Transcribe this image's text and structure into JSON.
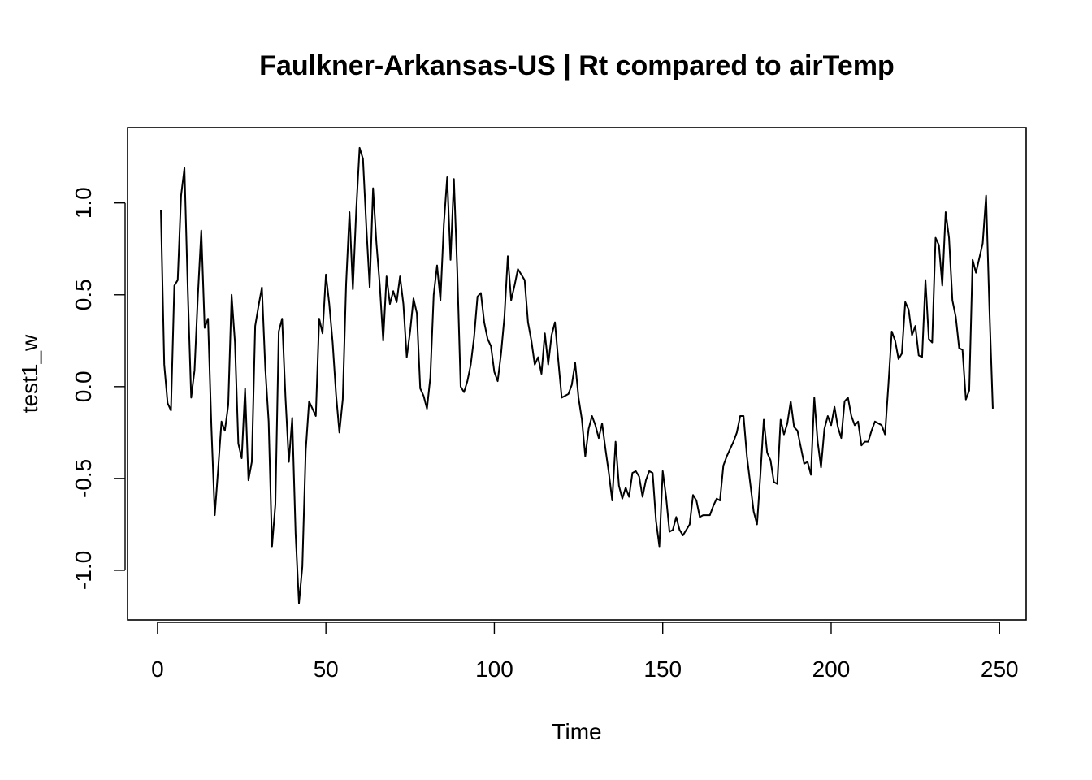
{
  "chart_data": {
    "type": "line",
    "title": "Faulkner-Arkansas-US | Rt compared to airTemp",
    "xlabel": "Time",
    "ylabel": "test1_w",
    "xlim": [
      -8.9,
      257.9
    ],
    "ylim": [
      -1.27,
      1.41
    ],
    "xticks": [
      {
        "value": 0,
        "label": "0"
      },
      {
        "value": 50,
        "label": "50"
      },
      {
        "value": 100,
        "label": "100"
      },
      {
        "value": 150,
        "label": "150"
      },
      {
        "value": 200,
        "label": "200"
      },
      {
        "value": 250,
        "label": "250"
      }
    ],
    "yticks": [
      {
        "value": -1.0,
        "label": "-1.0"
      },
      {
        "value": -0.5,
        "label": "-0.5"
      },
      {
        "value": 0.0,
        "label": "0.0"
      },
      {
        "value": 0.5,
        "label": "0.5"
      },
      {
        "value": 1.0,
        "label": "1.0"
      }
    ],
    "grid": false,
    "series": [
      {
        "x": [
          1,
          2,
          3,
          4,
          5,
          6,
          7,
          8,
          9,
          10,
          11,
          12,
          13,
          14,
          15,
          16,
          17,
          18,
          19,
          20,
          21,
          22,
          23,
          24,
          25,
          26,
          27,
          28,
          29,
          30,
          31,
          32,
          33,
          34,
          35,
          36,
          37,
          38,
          39,
          40,
          41,
          42,
          43,
          44,
          45,
          46,
          47,
          48,
          49,
          50,
          51,
          52,
          53,
          54,
          55,
          56,
          57,
          58,
          59,
          60,
          61,
          62,
          63,
          64,
          65,
          66,
          67,
          68,
          69,
          70,
          71,
          72,
          73,
          74,
          75,
          76,
          77,
          78,
          79,
          80,
          81,
          82,
          83,
          84,
          85,
          86,
          87,
          88,
          89,
          90,
          91,
          92,
          93,
          94,
          95,
          96,
          97,
          98,
          99,
          100,
          101,
          102,
          103,
          104,
          105,
          106,
          107,
          108,
          109,
          110,
          111,
          112,
          113,
          114,
          115,
          116,
          117,
          118,
          119,
          120,
          121,
          122,
          123,
          124,
          125,
          126,
          127,
          128,
          129,
          130,
          131,
          132,
          133,
          134,
          135,
          136,
          137,
          138,
          139,
          140,
          141,
          142,
          143,
          144,
          145,
          146,
          147,
          148,
          149,
          150,
          151,
          152,
          153,
          154,
          155,
          156,
          157,
          158,
          159,
          160,
          161,
          162,
          163,
          164,
          165,
          166,
          167,
          168,
          169,
          170,
          171,
          172,
          173,
          174,
          175,
          176,
          177,
          178,
          179,
          180,
          181,
          182,
          183,
          184,
          185,
          186,
          187,
          188,
          189,
          190,
          191,
          192,
          193,
          194,
          195,
          196,
          197,
          198,
          199,
          200,
          201,
          202,
          203,
          204,
          205,
          206,
          207,
          208,
          209,
          210,
          211,
          212,
          213,
          214,
          215,
          216,
          217,
          218,
          219,
          220,
          221,
          222,
          223,
          224,
          225,
          226,
          227,
          228,
          229,
          230,
          231,
          232,
          233,
          234,
          235,
          236,
          237,
          238,
          239,
          240,
          241,
          242,
          243,
          244,
          245,
          246,
          247,
          248
        ],
        "values": [
          0.96,
          0.12,
          -0.09,
          -0.13,
          0.55,
          0.58,
          1.04,
          1.19,
          0.52,
          -0.06,
          0.09,
          0.5,
          0.85,
          0.32,
          0.37,
          -0.22,
          -0.7,
          -0.45,
          -0.19,
          -0.24,
          -0.1,
          0.5,
          0.24,
          -0.31,
          -0.39,
          -0.01,
          -0.51,
          -0.41,
          0.33,
          0.44,
          0.54,
          0.1,
          -0.19,
          -0.87,
          -0.64,
          0.3,
          0.37,
          -0.06,
          -0.41,
          -0.17,
          -0.8,
          -1.18,
          -0.98,
          -0.35,
          -0.08,
          -0.12,
          -0.16,
          0.37,
          0.29,
          0.61,
          0.45,
          0.24,
          -0.04,
          -0.25,
          -0.07,
          0.56,
          0.95,
          0.53,
          0.96,
          1.3,
          1.24,
          0.87,
          0.54,
          1.08,
          0.78,
          0.55,
          0.25,
          0.6,
          0.45,
          0.52,
          0.46,
          0.6,
          0.45,
          0.16,
          0.3,
          0.48,
          0.4,
          -0.01,
          -0.05,
          -0.12,
          0.05,
          0.5,
          0.66,
          0.47,
          0.88,
          1.14,
          0.69,
          1.13,
          0.63,
          0.0,
          -0.03,
          0.03,
          0.12,
          0.27,
          0.49,
          0.51,
          0.35,
          0.26,
          0.22,
          0.08,
          0.03,
          0.18,
          0.38,
          0.71,
          0.47,
          0.55,
          0.64,
          0.61,
          0.58,
          0.35,
          0.25,
          0.12,
          0.16,
          0.07,
          0.29,
          0.12,
          0.28,
          0.35,
          0.14,
          -0.06,
          -0.05,
          -0.04,
          0.01,
          0.13,
          -0.06,
          -0.18,
          -0.38,
          -0.23,
          -0.16,
          -0.21,
          -0.28,
          -0.2,
          -0.34,
          -0.47,
          -0.62,
          -0.3,
          -0.54,
          -0.61,
          -0.55,
          -0.6,
          -0.47,
          -0.46,
          -0.49,
          -0.6,
          -0.51,
          -0.46,
          -0.47,
          -0.73,
          -0.87,
          -0.46,
          -0.6,
          -0.79,
          -0.78,
          -0.71,
          -0.78,
          -0.81,
          -0.78,
          -0.75,
          -0.59,
          -0.62,
          -0.71,
          -0.7,
          -0.7,
          -0.7,
          -0.65,
          -0.61,
          -0.62,
          -0.43,
          -0.38,
          -0.34,
          -0.3,
          -0.25,
          -0.16,
          -0.16,
          -0.38,
          -0.53,
          -0.68,
          -0.75,
          -0.48,
          -0.18,
          -0.36,
          -0.4,
          -0.52,
          -0.53,
          -0.18,
          -0.26,
          -0.2,
          -0.08,
          -0.22,
          -0.24,
          -0.33,
          -0.42,
          -0.41,
          -0.48,
          -0.06,
          -0.3,
          -0.44,
          -0.23,
          -0.16,
          -0.21,
          -0.11,
          -0.22,
          -0.28,
          -0.08,
          -0.06,
          -0.16,
          -0.21,
          -0.19,
          -0.32,
          -0.3,
          -0.3,
          -0.24,
          -0.19,
          -0.2,
          -0.21,
          -0.26,
          0.01,
          0.3,
          0.25,
          0.15,
          0.18,
          0.46,
          0.42,
          0.28,
          0.33,
          0.17,
          0.16,
          0.58,
          0.26,
          0.24,
          0.81,
          0.77,
          0.55,
          0.95,
          0.81,
          0.47,
          0.38,
          0.21,
          0.2,
          -0.07,
          -0.02,
          0.69,
          0.62,
          0.7,
          0.78,
          1.04,
          0.42,
          -0.12
        ]
      }
    ]
  }
}
